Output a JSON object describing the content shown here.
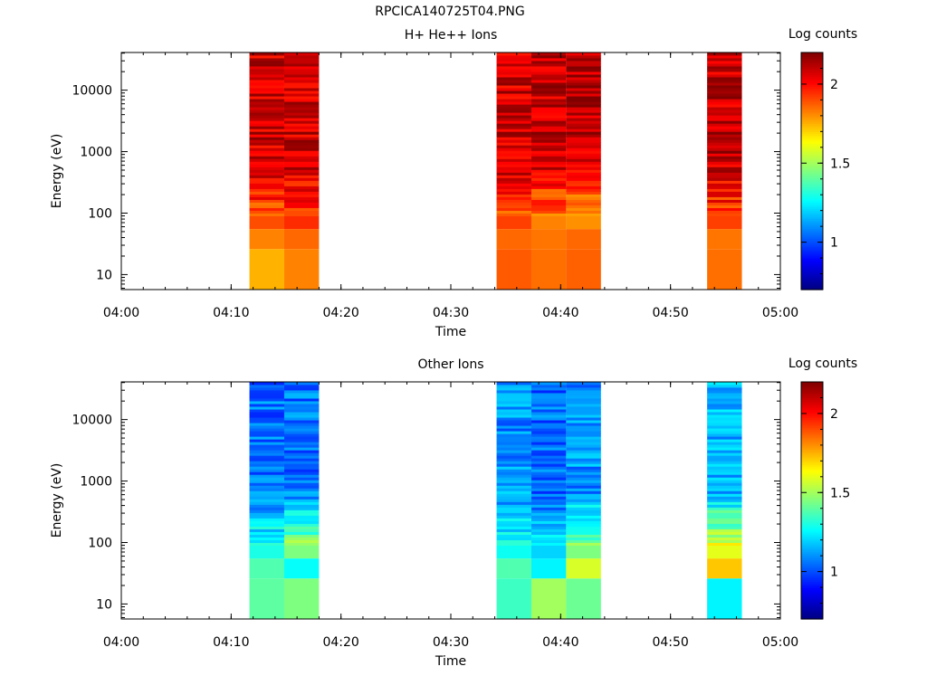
{
  "title": "RPCICA140725T04.PNG",
  "panels": [
    {
      "title": "H+ He++ Ions",
      "xlabel": "Time",
      "ylabel": "Energy (eV)",
      "colorbar_label": "Log counts",
      "colorbar_ticks": [
        "1",
        "1.5",
        "2"
      ]
    },
    {
      "title": "Other Ions",
      "xlabel": "Time",
      "ylabel": "Energy (eV)",
      "colorbar_label": "Log counts",
      "colorbar_ticks": [
        "1",
        "1.5",
        "2"
      ]
    }
  ],
  "chart_data": [
    {
      "type": "heatmap",
      "title": "H+ He++ Ions",
      "xlabel": "Time",
      "ylabel": "Energy (eV)",
      "colorbar_label": "Log counts",
      "x_range": [
        "04:00",
        "05:00"
      ],
      "x_ticks": [
        "04:00",
        "04:10",
        "04:20",
        "04:30",
        "04:40",
        "04:50",
        "05:00"
      ],
      "y_scale": "log",
      "y_range": [
        5.7,
        41000
      ],
      "y_ticks": [
        10,
        100,
        1000,
        10000
      ],
      "colorbar_range": [
        0.7,
        2.2
      ],
      "colorbar_ticks": [
        1,
        1.5,
        2
      ],
      "colormap": "jet",
      "columns": [
        {
          "start": "04:11:40",
          "end": "04:14:50",
          "low_energy": [
            1.75,
            1.82,
            1.9
          ],
          "high_energy": 2.08
        },
        {
          "start": "04:14:50",
          "end": "04:18:00",
          "low_energy": [
            1.82,
            1.86,
            1.95
          ],
          "high_energy": 2.08
        },
        {
          "start": "04:34:10",
          "end": "04:37:20",
          "low_energy": [
            1.88,
            1.86,
            1.92
          ],
          "high_energy": 2.08
        },
        {
          "start": "04:37:20",
          "end": "04:40:30",
          "low_energy": [
            1.85,
            1.84,
            1.82
          ],
          "high_energy": 2.1
        },
        {
          "start": "04:40:30",
          "end": "04:43:40",
          "low_energy": [
            1.87,
            1.86,
            1.8
          ],
          "high_energy": 2.1
        },
        {
          "start": "04:53:20",
          "end": "04:56:30",
          "low_energy": [
            1.85,
            1.84,
            1.92
          ],
          "high_energy": 2.1
        }
      ]
    },
    {
      "type": "heatmap",
      "title": "Other Ions",
      "xlabel": "Time",
      "ylabel": "Energy (eV)",
      "colorbar_label": "Log counts",
      "x_range": [
        "04:00",
        "05:00"
      ],
      "x_ticks": [
        "04:00",
        "04:10",
        "04:20",
        "04:30",
        "04:40",
        "04:50",
        "05:00"
      ],
      "y_scale": "log",
      "y_range": [
        5.7,
        41000
      ],
      "y_ticks": [
        10,
        100,
        1000,
        10000
      ],
      "colorbar_range": [
        0.7,
        2.2
      ],
      "colorbar_ticks": [
        1,
        1.5,
        2
      ],
      "colormap": "jet",
      "columns": [
        {
          "start": "04:11:40",
          "end": "04:14:50",
          "low_energy": [
            1.4,
            1.38,
            1.3
          ],
          "high_energy": 1.05
        },
        {
          "start": "04:14:50",
          "end": "04:18:00",
          "low_energy": [
            1.45,
            1.27,
            1.45
          ],
          "high_energy": 1.05
        },
        {
          "start": "04:34:10",
          "end": "04:37:20",
          "low_energy": [
            1.35,
            1.38,
            1.28
          ],
          "high_energy": 1.1
        },
        {
          "start": "04:37:20",
          "end": "04:40:30",
          "low_energy": [
            1.5,
            1.25,
            1.2
          ],
          "high_energy": 1.05
        },
        {
          "start": "04:40:30",
          "end": "04:43:40",
          "low_energy": [
            1.42,
            1.58,
            1.45
          ],
          "high_energy": 1.1
        },
        {
          "start": "04:53:20",
          "end": "04:56:30",
          "low_energy": [
            1.25,
            1.72,
            1.6
          ],
          "high_energy": 1.15
        }
      ]
    }
  ]
}
